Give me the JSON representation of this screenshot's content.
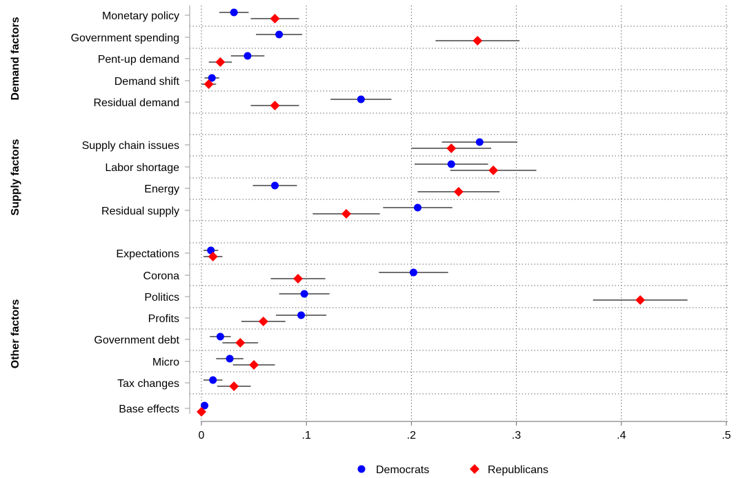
{
  "chart_data": {
    "type": "scatter",
    "subtype": "dot-and-whisker",
    "orientation": "horizontal",
    "xlim": [
      0,
      0.5
    ],
    "xticks": [
      0,
      0.1,
      0.2,
      0.3,
      0.4,
      0.5
    ],
    "xtick_labels": [
      "0",
      ".1",
      ".2",
      ".3",
      ".4",
      ".5"
    ],
    "grid": "dotted",
    "legend_position": "bottom",
    "colors": {
      "democrats": "#0000ff",
      "republicans": "#ff0000",
      "ci": "#707070"
    },
    "groups": [
      {
        "name": "Demand factors",
        "items": [
          "Monetary policy",
          "Government spending",
          "Pent-up demand",
          "Demand shift",
          "Residual demand"
        ]
      },
      {
        "name": "Supply factors",
        "items": [
          "Supply chain issues",
          "Labor shortage",
          "Energy",
          "Residual supply"
        ]
      },
      {
        "name": "Other factors",
        "items": [
          "Expectations",
          "Corona",
          "Politics",
          "Profits",
          "Government debt",
          "Micro",
          "Tax changes",
          "Base effects"
        ]
      }
    ],
    "categories": [
      "Monetary policy",
      "Government spending",
      "Pent-up demand",
      "Demand shift",
      "Residual demand",
      "Supply chain issues",
      "Labor shortage",
      "Energy",
      "Residual supply",
      "Expectations",
      "Corona",
      "Politics",
      "Profits",
      "Government debt",
      "Micro",
      "Tax changes",
      "Base effects"
    ],
    "series": [
      {
        "name": "Democrats",
        "marker": "circle",
        "color": "#0000ff",
        "values": [
          0.031,
          0.074,
          0.044,
          0.01,
          0.152,
          0.265,
          0.238,
          0.07,
          0.206,
          0.009,
          0.202,
          0.098,
          0.095,
          0.018,
          0.027,
          0.011,
          0.003
        ],
        "ci_low": [
          0.017,
          0.052,
          0.028,
          0.003,
          0.123,
          0.229,
          0.203,
          0.049,
          0.173,
          0.002,
          0.169,
          0.074,
          0.071,
          0.008,
          0.014,
          0.002,
          0.0
        ],
        "ci_high": [
          0.045,
          0.096,
          0.06,
          0.017,
          0.181,
          0.301,
          0.273,
          0.091,
          0.239,
          0.016,
          0.235,
          0.122,
          0.119,
          0.028,
          0.04,
          0.02,
          0.006
        ]
      },
      {
        "name": "Republicans",
        "marker": "diamond",
        "color": "#ff0000",
        "values": [
          0.07,
          0.263,
          0.018,
          0.007,
          0.07,
          0.238,
          0.278,
          0.245,
          0.138,
          0.011,
          0.092,
          0.418,
          0.059,
          0.037,
          0.05,
          0.031,
          0.0
        ],
        "ci_low": [
          0.047,
          0.223,
          0.007,
          0.0,
          0.047,
          0.2,
          0.237,
          0.206,
          0.106,
          0.002,
          0.066,
          0.373,
          0.038,
          0.02,
          0.03,
          0.015,
          0.0
        ],
        "ci_high": [
          0.093,
          0.303,
          0.029,
          0.014,
          0.093,
          0.276,
          0.319,
          0.284,
          0.17,
          0.02,
          0.118,
          0.463,
          0.08,
          0.054,
          0.07,
          0.047,
          0.002
        ]
      }
    ],
    "legend": [
      "Democrats",
      "Republicans"
    ]
  }
}
